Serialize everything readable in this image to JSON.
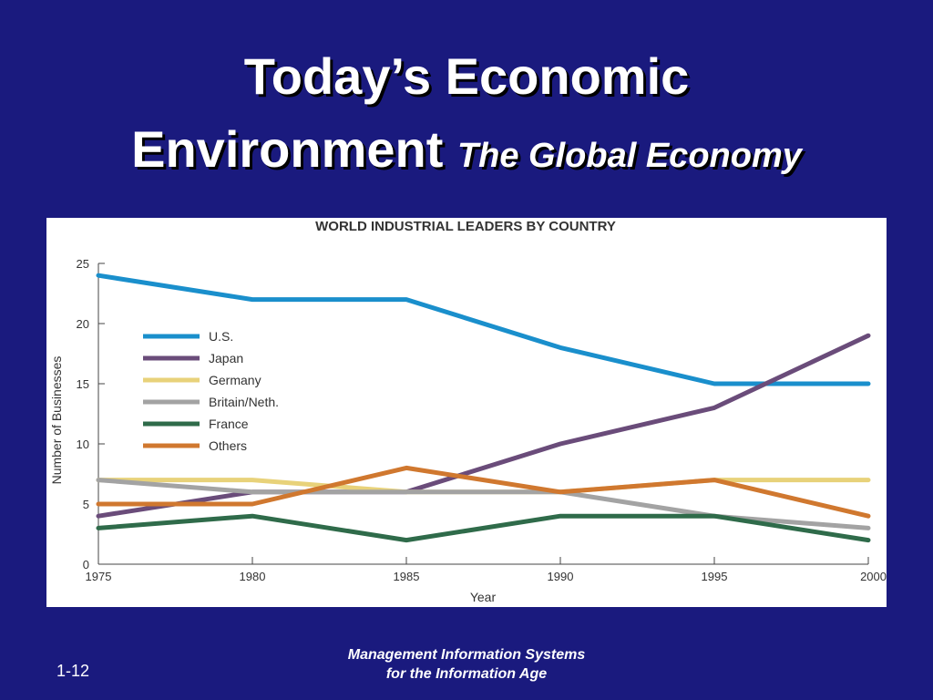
{
  "slide": {
    "title_line1": "Today’s Economic",
    "title_line2": "Environment",
    "subtitle": "The Global Economy",
    "footer_line1": "Management Information Systems",
    "footer_line2": "for the Information Age",
    "slide_number": "1-12",
    "background_color": "#1a1a7e"
  },
  "chart_data": {
    "type": "line",
    "title": "WORLD INDUSTRIAL LEADERS BY COUNTRY",
    "xlabel": "Year",
    "ylabel": "Number of Businesses",
    "x": [
      1975,
      1980,
      1985,
      1990,
      1995,
      2000
    ],
    "xlim": [
      1975,
      2000
    ],
    "ylim": [
      0,
      25
    ],
    "xticks": [
      "1975",
      "1980",
      "1985",
      "1990",
      "1995",
      "2000"
    ],
    "yticks": [
      "0",
      "5",
      "10",
      "15",
      "20",
      "25"
    ],
    "grid": false,
    "legend_position": "upper-left",
    "series": [
      {
        "name": "U.S.",
        "color": "#1a8fcc",
        "values": [
          24,
          22,
          22,
          18,
          15,
          15
        ]
      },
      {
        "name": "Japan",
        "color": "#6a4c7a",
        "values": [
          4,
          6,
          6,
          10,
          13,
          19
        ]
      },
      {
        "name": "Germany",
        "color": "#e8d27a",
        "values": [
          7,
          7,
          6,
          6,
          7,
          7
        ]
      },
      {
        "name": "Britain/Neth.",
        "color": "#a3a3a3",
        "values": [
          7,
          6,
          6,
          6,
          4,
          3
        ]
      },
      {
        "name": "France",
        "color": "#2f6b4a",
        "values": [
          3,
          4,
          2,
          4,
          4,
          2
        ]
      },
      {
        "name": "Others",
        "color": "#d0782f",
        "values": [
          5,
          5,
          8,
          6,
          7,
          4
        ]
      }
    ]
  }
}
